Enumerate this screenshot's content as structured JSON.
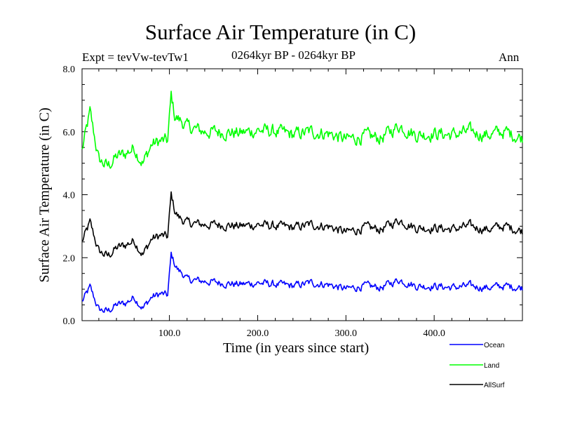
{
  "chart_data": {
    "type": "line",
    "title": "Surface Air Temperature (in C)",
    "subtitle_left": "Expt = tevVw-tevTw1",
    "subtitle_center": "0264kyr BP - 0264kyr BP",
    "subtitle_right": "Ann",
    "xlabel": "Time (in years since start)",
    "ylabel": "Surface Air Temperature (in C)",
    "xlim": [
      1,
      500
    ],
    "ylim": [
      0.0,
      8.0
    ],
    "xticks": [
      100,
      200,
      300,
      400
    ],
    "xtick_labels": [
      "100.0",
      "200.0",
      "300.0",
      "400.0"
    ],
    "yticks": [
      0,
      2,
      4,
      6,
      8
    ],
    "ytick_labels": [
      "0.0",
      "2.0",
      "4.0",
      "6.0",
      "8.0"
    ],
    "x": [
      1,
      10,
      20,
      30,
      40,
      50,
      60,
      70,
      80,
      90,
      98,
      102,
      106,
      110,
      115,
      120,
      140,
      160,
      180,
      200,
      220,
      240,
      260,
      280,
      300,
      320,
      340,
      360,
      380,
      400,
      420,
      440,
      460,
      480,
      500
    ],
    "series": [
      {
        "name": "Ocean",
        "color": "#0000ff",
        "values": [
          0.6,
          1.05,
          0.35,
          0.3,
          0.5,
          0.55,
          0.75,
          0.4,
          0.75,
          0.85,
          0.8,
          2.1,
          1.8,
          1.6,
          1.5,
          1.3,
          1.25,
          1.2,
          1.15,
          1.2,
          1.15,
          1.1,
          1.2,
          1.15,
          1.0,
          1.1,
          1.05,
          1.3,
          1.1,
          1.1,
          1.05,
          1.1,
          1.05,
          1.1,
          1.05
        ]
      },
      {
        "name": "Land",
        "color": "#00ff00",
        "values": [
          5.4,
          6.6,
          5.1,
          4.9,
          5.2,
          5.3,
          5.5,
          5.0,
          5.6,
          5.7,
          5.7,
          7.15,
          6.5,
          6.4,
          6.3,
          6.15,
          6.0,
          6.0,
          5.95,
          6.05,
          6.0,
          5.9,
          6.0,
          5.95,
          5.75,
          5.85,
          5.8,
          6.2,
          5.9,
          5.95,
          5.9,
          6.0,
          5.9,
          6.0,
          5.8
        ]
      },
      {
        "name": "AllSurf",
        "color": "#000000",
        "values": [
          2.5,
          3.1,
          2.2,
          2.05,
          2.3,
          2.4,
          2.55,
          2.1,
          2.6,
          2.7,
          2.65,
          4.0,
          3.5,
          3.3,
          3.2,
          3.1,
          3.05,
          3.05,
          3.0,
          3.05,
          3.0,
          2.95,
          3.05,
          3.0,
          2.8,
          2.95,
          2.9,
          3.2,
          2.95,
          2.95,
          2.9,
          3.0,
          2.9,
          3.0,
          2.85
        ]
      }
    ],
    "legend_position": "bottom-right"
  }
}
